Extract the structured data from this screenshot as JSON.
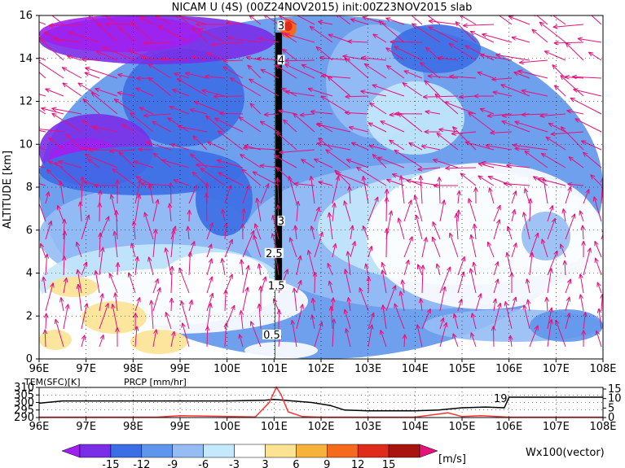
{
  "title": "NICAM U (4S) (00Z24NOV2015) init:00Z23NOV2015 slab",
  "chart_data": [
    {
      "type": "heatmap",
      "panel": "main",
      "xlabel": "",
      "ylabel": "ALTITUDE [km]",
      "x_ticks": [
        "96E",
        "97E",
        "98E",
        "99E",
        "100E",
        "101E",
        "102E",
        "103E",
        "104E",
        "105E",
        "106E",
        "107E",
        "108E"
      ],
      "y_ticks": [
        "0",
        "2",
        "4",
        "6",
        "8",
        "10",
        "12",
        "14",
        "16"
      ],
      "xlim": [
        96,
        108
      ],
      "ylim": [
        0,
        16
      ],
      "grid": true,
      "contour_labels": [
        {
          "text": "3",
          "x": 101.15,
          "y": 15.5
        },
        {
          "text": "4",
          "x": 101.15,
          "y": 13.9
        },
        {
          "text": "3",
          "x": 101.15,
          "y": 6.4
        },
        {
          "text": "2.5",
          "x": 101.0,
          "y": 4.9
        },
        {
          "text": "1.5",
          "x": 101.05,
          "y": 3.4
        },
        {
          "text": "0.5",
          "x": 100.95,
          "y": 1.1
        }
      ]
    },
    {
      "type": "line",
      "panel": "bottom",
      "labels": {
        "tem": "TEM(SFC)[K]",
        "prcp": "PRCP [mm/hr]"
      },
      "left_ticks": [
        "310",
        "305",
        "300",
        "295",
        "290"
      ],
      "right_ticks": [
        "15",
        "10",
        "5",
        "0"
      ],
      "x_ticks": [
        "96E",
        "97E",
        "98E",
        "99E",
        "100E",
        "101E",
        "102E",
        "103E",
        "104E",
        "105E",
        "106E",
        "107E",
        "108E"
      ],
      "annotation": "19",
      "series": [
        {
          "name": "TEM(SFC)[K]",
          "color": "#000000",
          "x": [
            96.0,
            96.5,
            97.0,
            98.0,
            99.0,
            100.0,
            100.8,
            101.0,
            101.4,
            101.8,
            102.2,
            102.5,
            103.0,
            103.5,
            104.0,
            104.5,
            105.0,
            105.5,
            105.9,
            106.0,
            107.0,
            108.0
          ],
          "values": [
            299.5,
            301.0,
            301.0,
            301.0,
            301.0,
            301.0,
            301.5,
            302.0,
            301.0,
            300.0,
            298.0,
            295.0,
            294.5,
            294.5,
            294.5,
            295.0,
            296.5,
            297.0,
            296.5,
            303.5,
            303.5,
            303.5
          ]
        },
        {
          "name": "PRCP [mm/hr]",
          "color": "#ff3333",
          "x": [
            96.0,
            98.5,
            99.0,
            100.6,
            100.9,
            101.05,
            101.15,
            101.3,
            101.6,
            102.0,
            104.0,
            104.7,
            105.0,
            105.4,
            106.0,
            108.0
          ],
          "values": [
            0.2,
            0.2,
            1.0,
            0.3,
            8.0,
            16.0,
            12.0,
            3.0,
            0.5,
            0.2,
            0.2,
            2.5,
            0.5,
            1.0,
            0.2,
            0.2
          ]
        }
      ]
    }
  ],
  "colorbar": {
    "labels": [
      "-15",
      "-12",
      "-9",
      "-6",
      "-3",
      "3",
      "6",
      "9",
      "12",
      "15"
    ],
    "colors": [
      "#a020f0",
      "#7a2ee8",
      "#3c6ee6",
      "#5e96ec",
      "#96bcf4",
      "#c4e8fc",
      "#ffffff",
      "#fce392",
      "#f7b23b",
      "#f46b1d",
      "#df2b1c",
      "#a81410",
      "#e4127b"
    ],
    "unit": "[m/s]",
    "vector_label": "Wx100(vector)"
  }
}
